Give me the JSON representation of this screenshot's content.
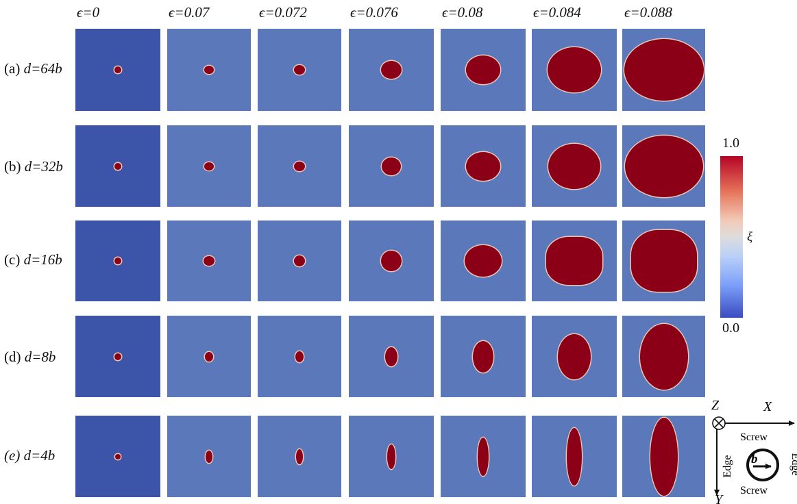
{
  "columns": [
    "ϵ=0",
    "ϵ=0.07",
    "ϵ=0.072",
    "ϵ=0.076",
    "ϵ=0.08",
    "ϵ=0.084",
    "ϵ=0.088"
  ],
  "rows": [
    {
      "prefix": "(a)",
      "label": "d=64b"
    },
    {
      "prefix": "(b)",
      "label": "d=32b"
    },
    {
      "prefix": "(c)",
      "label": "d=16b"
    },
    {
      "prefix": "(d)",
      "label": "d=8b"
    },
    {
      "prefix": "(e)",
      "label": "d=4b"
    }
  ],
  "colorbar": {
    "max_label": "1.0",
    "min_label": "0.0",
    "variable": "ξ",
    "colors": {
      "high": "#b40426",
      "mid": "#dddcdc",
      "low": "#3b4cc0"
    }
  },
  "coordinate_legend": {
    "z_axis": "Z",
    "x_axis": "X",
    "y_axis": "Y",
    "burgers_vector": "b",
    "top_segment": "Screw",
    "bottom_segment": "Screw",
    "left_segment": "Edge",
    "right_segment": "Edge"
  },
  "colors": {
    "loop": "#8b0017",
    "matrix_unstrained": "#3d55a8",
    "matrix_strained": "#5b78bb"
  }
}
